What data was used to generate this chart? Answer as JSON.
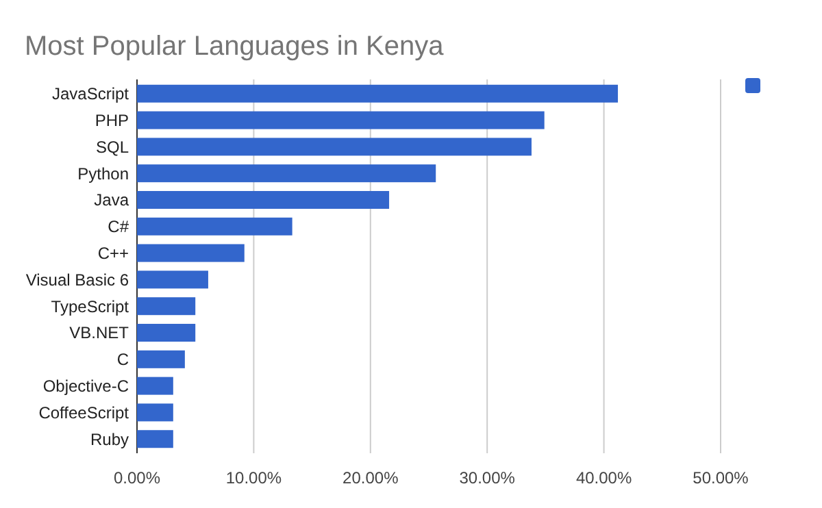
{
  "chart_data": {
    "type": "bar",
    "orientation": "horizontal",
    "title": "Most Popular Languages in Kenya",
    "categories": [
      "JavaScript",
      "PHP",
      "SQL",
      "Python",
      "Java",
      "C#",
      "C++",
      "Visual Basic 6",
      "TypeScript",
      "VB.NET",
      "C",
      "Objective-C",
      "CoffeeScript",
      "Ruby"
    ],
    "series": [
      {
        "color": "#3366cc",
        "values": [
          41.2,
          34.9,
          33.8,
          25.6,
          21.6,
          13.3,
          9.2,
          6.1,
          5.0,
          5.0,
          4.1,
          3.1,
          3.1,
          3.1
        ]
      }
    ],
    "xlim": [
      0,
      50
    ],
    "xticks": [
      {
        "value": 0,
        "label": "0.00%"
      },
      {
        "value": 10,
        "label": "10.00%"
      },
      {
        "value": 20,
        "label": "20.00%"
      },
      {
        "value": 30,
        "label": "30.00%"
      },
      {
        "value": 40,
        "label": "40.00%"
      },
      {
        "value": 50,
        "label": "50.00%"
      }
    ],
    "grid": "x"
  }
}
